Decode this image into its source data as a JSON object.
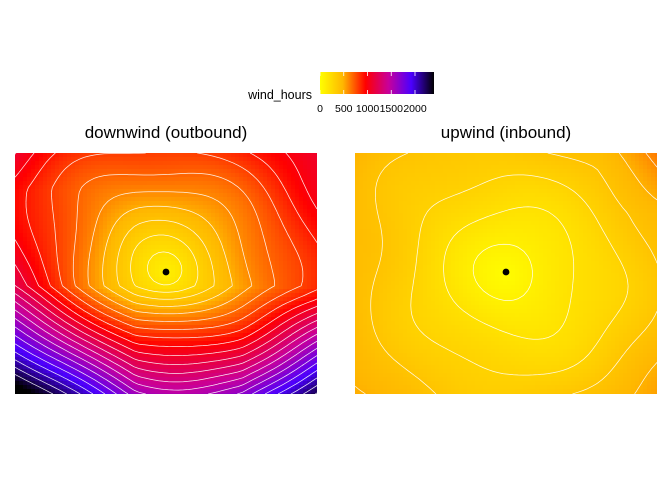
{
  "chart_data": {
    "type": "heatmap",
    "subtype": "filled-contour map with contour lines",
    "legend": {
      "title": "wind_hours",
      "placement": "top",
      "range": [
        0,
        2400
      ],
      "ticks": [
        0,
        500,
        1000,
        1500,
        2000
      ],
      "tick_labels": [
        "0",
        "500",
        "1000",
        "1500",
        "2000"
      ],
      "color_stops": [
        "#ffff00",
        "#ffb700",
        "#ff0000",
        "#c8009a",
        "#4b00ff",
        "#000000"
      ]
    },
    "contour_line_color": "#ffffff",
    "marker_color": "#000000",
    "panels": [
      {
        "title": "downwind (outbound)",
        "center": [
          0.5,
          0.5
        ],
        "value_range": [
          0,
          2400
        ],
        "contour_interval": 100
      },
      {
        "title": "upwind (inbound)",
        "center": [
          0.5,
          0.5
        ],
        "value_range": [
          0,
          700
        ],
        "contour_interval": 100
      }
    ]
  }
}
